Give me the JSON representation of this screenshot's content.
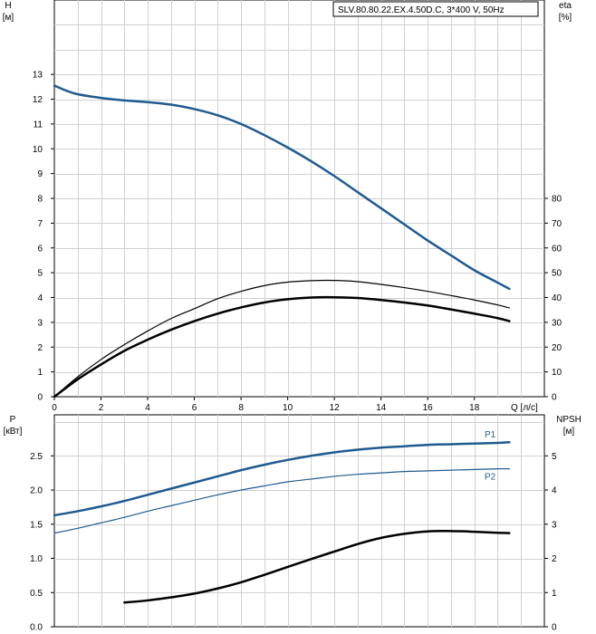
{
  "chart_data": [
    {
      "type": "line",
      "title": "SLV.80.80.22.EX.4.50D.C, 3*400 V, 50Hz",
      "xlabel": "Q [л/с]",
      "xlim": [
        0,
        21
      ],
      "xticks": [
        0,
        2,
        4,
        6,
        8,
        10,
        12,
        14,
        16,
        18
      ],
      "y_left": {
        "label_top": "H",
        "label_unit": "[м]",
        "lim": [
          0,
          16
        ],
        "ticks": [
          0,
          1,
          2,
          3,
          4,
          5,
          6,
          7,
          8,
          9,
          10,
          11,
          12,
          13
        ]
      },
      "y_right": {
        "label_top": "eta",
        "label_unit": "[%]",
        "lim": [
          0,
          160
        ],
        "ticks": [
          0,
          10,
          20,
          30,
          40,
          50,
          60,
          70,
          80
        ]
      },
      "grid": true,
      "series": [
        {
          "axis": "left",
          "color": "#1f5a91",
          "width": 2.5,
          "x": [
            0,
            0.5,
            1,
            2,
            3,
            4,
            5,
            6,
            7,
            8,
            9,
            10,
            11,
            12,
            13,
            14,
            15,
            16,
            17,
            18,
            19,
            19.5
          ],
          "y": [
            12.55,
            12.35,
            12.2,
            12.05,
            11.95,
            11.88,
            11.78,
            11.6,
            11.35,
            11.0,
            10.55,
            10.05,
            9.5,
            8.9,
            8.25,
            7.6,
            6.95,
            6.3,
            5.7,
            5.1,
            4.6,
            4.35
          ]
        },
        {
          "axis": "right",
          "color": "#000000",
          "width": 1.2,
          "x": [
            0,
            1,
            2,
            3,
            4,
            5,
            6,
            7,
            8,
            9,
            10,
            11,
            12,
            13,
            14,
            15,
            16,
            17,
            18,
            19,
            19.5
          ],
          "y": [
            0,
            8,
            15,
            21,
            26.5,
            31.5,
            35.5,
            39.5,
            42.5,
            44.8,
            46.2,
            46.8,
            46.9,
            46.4,
            45.3,
            44,
            42.5,
            40.8,
            39,
            37,
            35.8
          ]
        },
        {
          "axis": "right",
          "color": "#000000",
          "width": 2.5,
          "x": [
            0,
            1,
            2,
            3,
            4,
            5,
            6,
            7,
            8,
            9,
            10,
            11,
            12,
            13,
            14,
            15,
            16,
            17,
            18,
            19,
            19.5
          ],
          "y": [
            0,
            7,
            13,
            18.5,
            23,
            27,
            30.5,
            33.5,
            36,
            38,
            39.3,
            40,
            40.1,
            39.8,
            39,
            38,
            36.8,
            35.2,
            33.5,
            31.7,
            30.5
          ]
        }
      ]
    },
    {
      "type": "line",
      "xlim": [
        0,
        21
      ],
      "xticks": [
        0,
        2,
        4,
        6,
        8,
        10,
        12,
        14,
        16,
        18
      ],
      "y_left": {
        "label_top": "P",
        "label_unit": "[кВт]",
        "lim": [
          0,
          3.1
        ],
        "ticks": [
          0.0,
          0.5,
          1.0,
          1.5,
          2.0,
          2.5
        ],
        "tick_labels": [
          "0.0",
          "0.5",
          "1.0",
          "1.5",
          "2.0",
          "2.5"
        ]
      },
      "y_right": {
        "label_top": "NPSH",
        "label_unit": "[м]",
        "lim": [
          0,
          6.2
        ],
        "ticks": [
          0,
          1,
          2,
          3,
          4,
          5
        ]
      },
      "grid": true,
      "series": [
        {
          "name": "P1",
          "axis": "left",
          "color": "#1f5a91",
          "width": 2.5,
          "x": [
            0,
            1,
            2,
            3,
            4,
            5,
            6,
            7,
            8,
            9,
            10,
            11,
            12,
            13,
            14,
            15,
            16,
            17,
            18,
            19,
            19.5
          ],
          "y": [
            1.63,
            1.69,
            1.76,
            1.84,
            1.93,
            2.02,
            2.11,
            2.2,
            2.29,
            2.37,
            2.44,
            2.5,
            2.55,
            2.59,
            2.62,
            2.64,
            2.66,
            2.67,
            2.68,
            2.69,
            2.7
          ]
        },
        {
          "name": "P2",
          "axis": "left",
          "color": "#1f5a91",
          "width": 1.2,
          "x": [
            0,
            1,
            2,
            3,
            4,
            5,
            6,
            7,
            8,
            9,
            10,
            11,
            12,
            13,
            14,
            15,
            16,
            17,
            18,
            19,
            19.5
          ],
          "y": [
            1.37,
            1.44,
            1.52,
            1.6,
            1.69,
            1.77,
            1.85,
            1.93,
            2.0,
            2.06,
            2.12,
            2.16,
            2.2,
            2.23,
            2.25,
            2.27,
            2.28,
            2.29,
            2.3,
            2.31,
            2.31
          ]
        },
        {
          "axis": "right",
          "color": "#000000",
          "width": 2.5,
          "x": [
            3,
            4,
            5,
            6,
            7,
            8,
            9,
            10,
            11,
            12,
            13,
            14,
            15,
            16,
            17,
            18,
            19,
            19.5
          ],
          "y": [
            0.71,
            0.77,
            0.86,
            0.97,
            1.12,
            1.3,
            1.52,
            1.75,
            1.98,
            2.2,
            2.42,
            2.6,
            2.72,
            2.79,
            2.8,
            2.78,
            2.75,
            2.74
          ]
        }
      ]
    }
  ]
}
